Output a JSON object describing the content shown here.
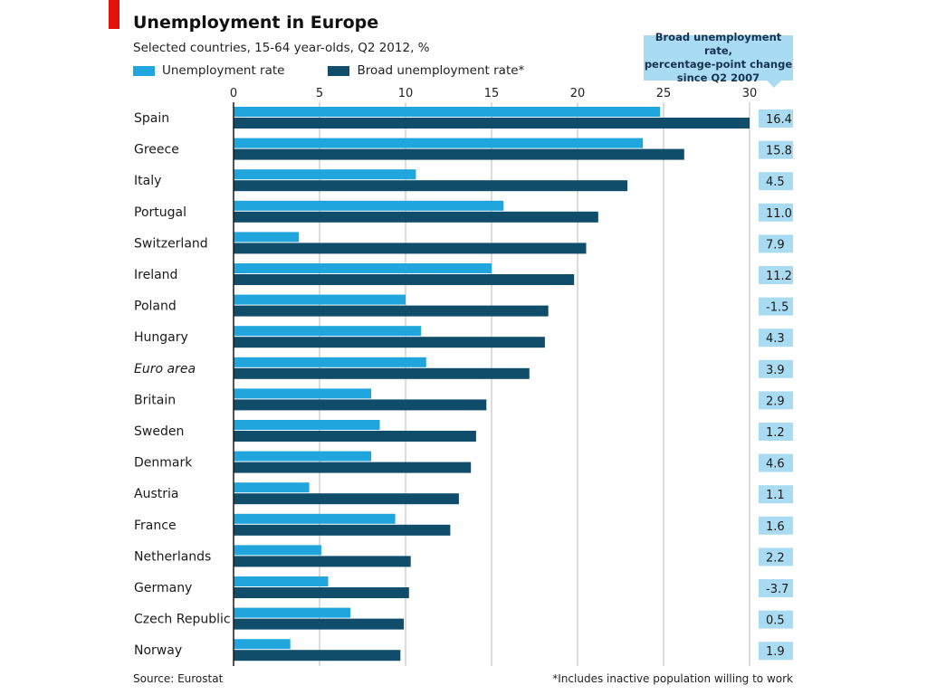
{
  "header": {
    "title": "Unemployment in Europe",
    "subtitle": "Selected countries, 15-64 year-olds, Q2 2012, %"
  },
  "legend": {
    "series1": "Unemployment rate",
    "series2": "Broad unemployment rate*"
  },
  "callout": {
    "line1": "Broad unemployment rate,",
    "line2": "percentage-point change",
    "line3": "since Q2 2007"
  },
  "footer": {
    "source": "Source: Eurostat",
    "note": "*Includes inactive population willing to work"
  },
  "colors": {
    "series1": "#20a6dd",
    "series2": "#0f4d6b",
    "accent": "#e3120b",
    "change_box": "#a9dcf2"
  },
  "chart_data": {
    "type": "bar",
    "orientation": "horizontal",
    "title": "Unemployment in Europe",
    "subtitle": "Selected countries, 15-64 year-olds, Q2 2012, %",
    "xlim": [
      0,
      30
    ],
    "xticks": [
      0,
      5,
      10,
      15,
      20,
      25,
      30
    ],
    "grid": true,
    "legend_position": "top-left",
    "categories": [
      "Spain",
      "Greece",
      "Italy",
      "Portugal",
      "Switzerland",
      "Ireland",
      "Poland",
      "Hungary",
      "Euro area",
      "Britain",
      "Sweden",
      "Denmark",
      "Austria",
      "France",
      "Netherlands",
      "Germany",
      "Czech Republic",
      "Norway"
    ],
    "italic_categories": [
      "Euro area"
    ],
    "series": [
      {
        "name": "Unemployment rate",
        "values": [
          24.8,
          23.8,
          10.6,
          15.7,
          3.8,
          15.0,
          10.0,
          10.9,
          11.2,
          8.0,
          8.5,
          8.0,
          4.4,
          9.4,
          5.1,
          5.5,
          6.8,
          3.3
        ]
      },
      {
        "name": "Broad unemployment rate*",
        "values": [
          30.0,
          26.2,
          22.9,
          21.2,
          20.5,
          19.8,
          18.3,
          18.1,
          17.2,
          14.7,
          14.1,
          13.8,
          13.1,
          12.6,
          10.3,
          10.2,
          9.9,
          9.7
        ]
      }
    ],
    "change_label": "Broad unemployment rate, percentage-point change since Q2 2007",
    "change_values": [
      "16.4",
      "15.8",
      "4.5",
      "11.0",
      "7.9",
      "11.2",
      "-1.5",
      "4.3",
      "3.9",
      "2.9",
      "1.2",
      "4.6",
      "1.1",
      "1.6",
      "2.2",
      "-3.7",
      "0.5",
      "1.9"
    ]
  }
}
